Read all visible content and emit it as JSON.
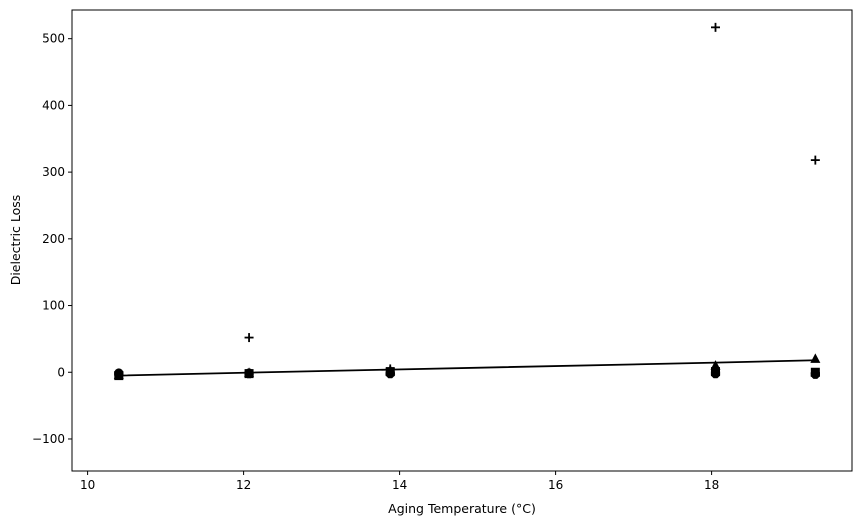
{
  "chart_data": {
    "type": "scatter",
    "title": "",
    "xlabel": "Aging Temperature (°C)",
    "ylabel": "Dielectric Loss",
    "xlim": [
      9.8,
      19.8
    ],
    "ylim": [
      -148,
      543
    ],
    "x_ticks": [
      10,
      12,
      14,
      16,
      18
    ],
    "x_tick_labels": [
      "10",
      "12",
      "14",
      "16",
      "18"
    ],
    "y_ticks": [
      -100,
      0,
      100,
      200,
      300,
      400,
      500
    ],
    "y_tick_labels": [
      "−100",
      "0",
      "100",
      "200",
      "300",
      "400",
      "500"
    ],
    "grid": false,
    "legend": "none",
    "x": [
      10.4,
      12.07,
      13.88,
      18.05,
      19.33
    ],
    "series": [
      {
        "marker": "plus",
        "values": [
          -3,
          52,
          5,
          517,
          318
        ]
      },
      {
        "marker": "triangle",
        "values": [
          -4,
          -1,
          3,
          10,
          20
        ]
      },
      {
        "marker": "square",
        "values": [
          -5,
          -2,
          1,
          1,
          0
        ]
      },
      {
        "marker": "circle",
        "values": [
          -1,
          -1,
          -1,
          -1,
          -2
        ]
      },
      {
        "marker": "octagon",
        "values": [
          -2,
          -2,
          -2,
          -2,
          -3
        ]
      }
    ],
    "fit_line": {
      "style": "solid",
      "values": [
        -5.0,
        -0.5,
        4.0,
        14.4,
        18.0
      ]
    },
    "colors": {
      "marks": "#000000",
      "axes": "#000000",
      "background": "#ffffff"
    }
  }
}
